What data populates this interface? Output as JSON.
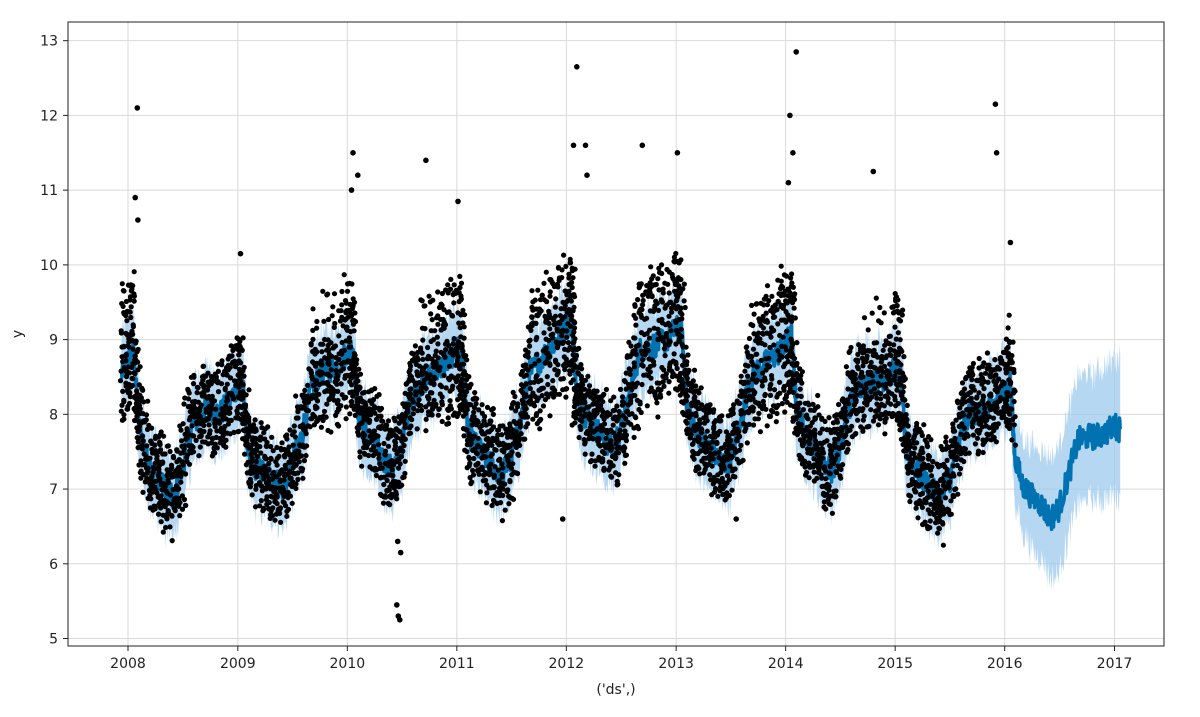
{
  "chart_data": {
    "type": "line",
    "title": "",
    "xlabel": "('ds',)",
    "ylabel": "y",
    "grid": true,
    "xlim": [
      "2007-06-15",
      "2017-06-15"
    ],
    "ylim": [
      4.9,
      13.25
    ],
    "xticks": [
      "2008",
      "2009",
      "2010",
      "2011",
      "2012",
      "2013",
      "2014",
      "2015",
      "2016",
      "2017"
    ],
    "yticks": [
      5,
      6,
      7,
      8,
      9,
      10,
      11,
      12,
      13
    ],
    "colors": {
      "forecast_line": "#0072B2",
      "uncertainty_band": "#9cc9ec",
      "observed_points": "#000000"
    },
    "forecast": {
      "x": [
        "2007-12-10",
        "2008-01-01",
        "2008-01-20",
        "2008-02-05",
        "2008-03-01",
        "2008-04-01",
        "2008-05-01",
        "2008-06-01",
        "2008-07-01",
        "2008-08-01",
        "2008-09-01",
        "2008-10-01",
        "2008-11-01",
        "2008-12-01",
        "2009-01-01",
        "2009-01-20",
        "2009-02-05",
        "2009-03-01",
        "2009-04-01",
        "2009-05-01",
        "2009-06-01",
        "2009-07-01",
        "2009-08-01",
        "2009-09-01",
        "2009-10-01",
        "2009-11-01",
        "2009-12-01",
        "2010-01-01",
        "2010-01-20",
        "2010-02-05",
        "2010-03-01",
        "2010-04-01",
        "2010-05-01",
        "2010-06-01",
        "2010-07-01",
        "2010-08-01",
        "2010-09-01",
        "2010-10-01",
        "2010-11-01",
        "2010-12-01",
        "2011-01-01",
        "2011-01-20",
        "2011-02-05",
        "2011-03-01",
        "2011-04-01",
        "2011-05-01",
        "2011-06-01",
        "2011-07-01",
        "2011-08-01",
        "2011-09-01",
        "2011-10-01",
        "2011-11-01",
        "2011-12-01",
        "2012-01-01",
        "2012-01-20",
        "2012-02-05",
        "2012-03-01",
        "2012-04-01",
        "2012-05-01",
        "2012-06-01",
        "2012-07-01",
        "2012-08-01",
        "2012-09-01",
        "2012-10-01",
        "2012-11-01",
        "2012-12-01",
        "2013-01-01",
        "2013-01-20",
        "2013-02-05",
        "2013-03-01",
        "2013-04-01",
        "2013-05-01",
        "2013-06-01",
        "2013-07-01",
        "2013-08-01",
        "2013-09-01",
        "2013-10-01",
        "2013-11-01",
        "2013-12-01",
        "2014-01-01",
        "2014-01-20",
        "2014-02-05",
        "2014-03-01",
        "2014-04-01",
        "2014-05-01",
        "2014-06-01",
        "2014-07-01",
        "2014-08-01",
        "2014-09-01",
        "2014-10-01",
        "2014-11-01",
        "2014-12-01",
        "2015-01-01",
        "2015-01-20",
        "2015-02-05",
        "2015-03-01",
        "2015-04-01",
        "2015-05-01",
        "2015-06-01",
        "2015-07-01",
        "2015-08-01",
        "2015-09-01",
        "2015-10-01",
        "2015-11-01",
        "2015-12-01",
        "2016-01-01",
        "2016-01-20",
        "2016-02-05",
        "2016-03-01",
        "2016-04-01",
        "2016-05-01",
        "2016-06-01",
        "2016-07-01",
        "2016-08-01",
        "2016-09-01",
        "2016-10-01",
        "2016-11-01",
        "2016-12-01",
        "2017-01-01",
        "2017-01-20"
      ],
      "yhat": [
        8.55,
        8.75,
        8.85,
        7.9,
        7.45,
        7.2,
        7.0,
        6.85,
        7.3,
        7.85,
        8.0,
        8.1,
        8.0,
        8.15,
        8.4,
        8.3,
        7.4,
        7.3,
        7.2,
        7.15,
        7.0,
        7.35,
        7.7,
        8.3,
        8.55,
        8.6,
        8.65,
        8.85,
        8.9,
        8.0,
        7.75,
        7.6,
        7.4,
        7.25,
        7.55,
        8.2,
        8.4,
        8.5,
        8.6,
        8.7,
        8.9,
        8.75,
        7.8,
        7.6,
        7.45,
        7.3,
        7.2,
        7.4,
        7.9,
        8.55,
        8.7,
        8.85,
        9.0,
        9.2,
        9.25,
        8.25,
        8.0,
        7.85,
        7.7,
        7.55,
        7.8,
        8.3,
        8.85,
        8.9,
        8.95,
        9.0,
        9.15,
        9.1,
        8.15,
        7.85,
        7.65,
        7.5,
        7.35,
        7.4,
        7.8,
        8.45,
        8.6,
        8.7,
        8.8,
        8.95,
        9.05,
        8.1,
        7.8,
        7.6,
        7.4,
        7.25,
        7.5,
        8.1,
        8.4,
        8.4,
        8.45,
        8.5,
        8.6,
        8.5,
        7.55,
        7.35,
        7.15,
        7.0,
        6.85,
        7.1,
        7.6,
        8.0,
        8.05,
        8.05,
        8.15,
        8.35,
        8.4,
        7.4,
        7.05,
        6.9,
        6.8,
        6.6,
        6.75,
        7.2,
        7.65,
        7.7,
        7.7,
        7.75,
        7.85,
        7.8
      ],
      "band_width": [
        0.55,
        0.55,
        0.55,
        0.55,
        0.55,
        0.55,
        0.55,
        0.55,
        0.55,
        0.55,
        0.55,
        0.55,
        0.55,
        0.55,
        0.55,
        0.55,
        0.55,
        0.55,
        0.55,
        0.55,
        0.55,
        0.55,
        0.55,
        0.55,
        0.55,
        0.55,
        0.55,
        0.55,
        0.55,
        0.55,
        0.55,
        0.55,
        0.55,
        0.55,
        0.55,
        0.55,
        0.55,
        0.55,
        0.55,
        0.55,
        0.55,
        0.55,
        0.55,
        0.55,
        0.55,
        0.55,
        0.55,
        0.55,
        0.55,
        0.55,
        0.55,
        0.55,
        0.55,
        0.55,
        0.55,
        0.55,
        0.55,
        0.55,
        0.55,
        0.55,
        0.55,
        0.55,
        0.55,
        0.55,
        0.55,
        0.55,
        0.55,
        0.55,
        0.55,
        0.55,
        0.55,
        0.55,
        0.55,
        0.55,
        0.55,
        0.55,
        0.55,
        0.55,
        0.55,
        0.55,
        0.55,
        0.55,
        0.55,
        0.55,
        0.55,
        0.55,
        0.55,
        0.55,
        0.55,
        0.55,
        0.55,
        0.55,
        0.55,
        0.55,
        0.55,
        0.55,
        0.55,
        0.55,
        0.55,
        0.55,
        0.55,
        0.55,
        0.55,
        0.55,
        0.55,
        0.55,
        0.6,
        0.6,
        0.65,
        0.7,
        0.75,
        0.8,
        0.85,
        0.85,
        0.85,
        0.85,
        0.85,
        0.9,
        0.9,
        0.95
      ]
    },
    "observed_outliers": [
      {
        "x": "2008-02-01",
        "y": 12.1
      },
      {
        "x": "2008-01-25",
        "y": 10.9
      },
      {
        "x": "2008-02-03",
        "y": 10.6
      },
      {
        "x": "2010-01-20",
        "y": 11.5
      },
      {
        "x": "2010-02-05",
        "y": 11.2
      },
      {
        "x": "2010-01-15",
        "y": 11.0
      },
      {
        "x": "2010-09-20",
        "y": 11.4
      },
      {
        "x": "2011-01-05",
        "y": 10.85
      },
      {
        "x": "2012-02-05",
        "y": 12.65
      },
      {
        "x": "2012-01-25",
        "y": 11.6
      },
      {
        "x": "2012-03-05",
        "y": 11.6
      },
      {
        "x": "2012-03-10",
        "y": 11.2
      },
      {
        "x": "2012-09-10",
        "y": 11.6
      },
      {
        "x": "2013-01-05",
        "y": 11.5
      },
      {
        "x": "2014-01-15",
        "y": 12.0
      },
      {
        "x": "2014-01-25",
        "y": 11.5
      },
      {
        "x": "2014-02-05",
        "y": 12.85
      },
      {
        "x": "2014-01-10",
        "y": 11.1
      },
      {
        "x": "2014-10-20",
        "y": 11.25
      },
      {
        "x": "2015-12-01",
        "y": 12.15
      },
      {
        "x": "2015-12-05",
        "y": 11.5
      },
      {
        "x": "2016-01-20",
        "y": 10.3
      },
      {
        "x": "2010-06-15",
        "y": 5.45
      },
      {
        "x": "2010-06-20",
        "y": 5.3
      },
      {
        "x": "2010-06-25",
        "y": 5.25
      },
      {
        "x": "2010-06-18",
        "y": 6.3
      },
      {
        "x": "2010-06-28",
        "y": 6.15
      },
      {
        "x": "2011-12-20",
        "y": 6.6
      },
      {
        "x": "2013-07-20",
        "y": 6.6
      },
      {
        "x": "2009-01-10",
        "y": 10.15
      }
    ]
  }
}
